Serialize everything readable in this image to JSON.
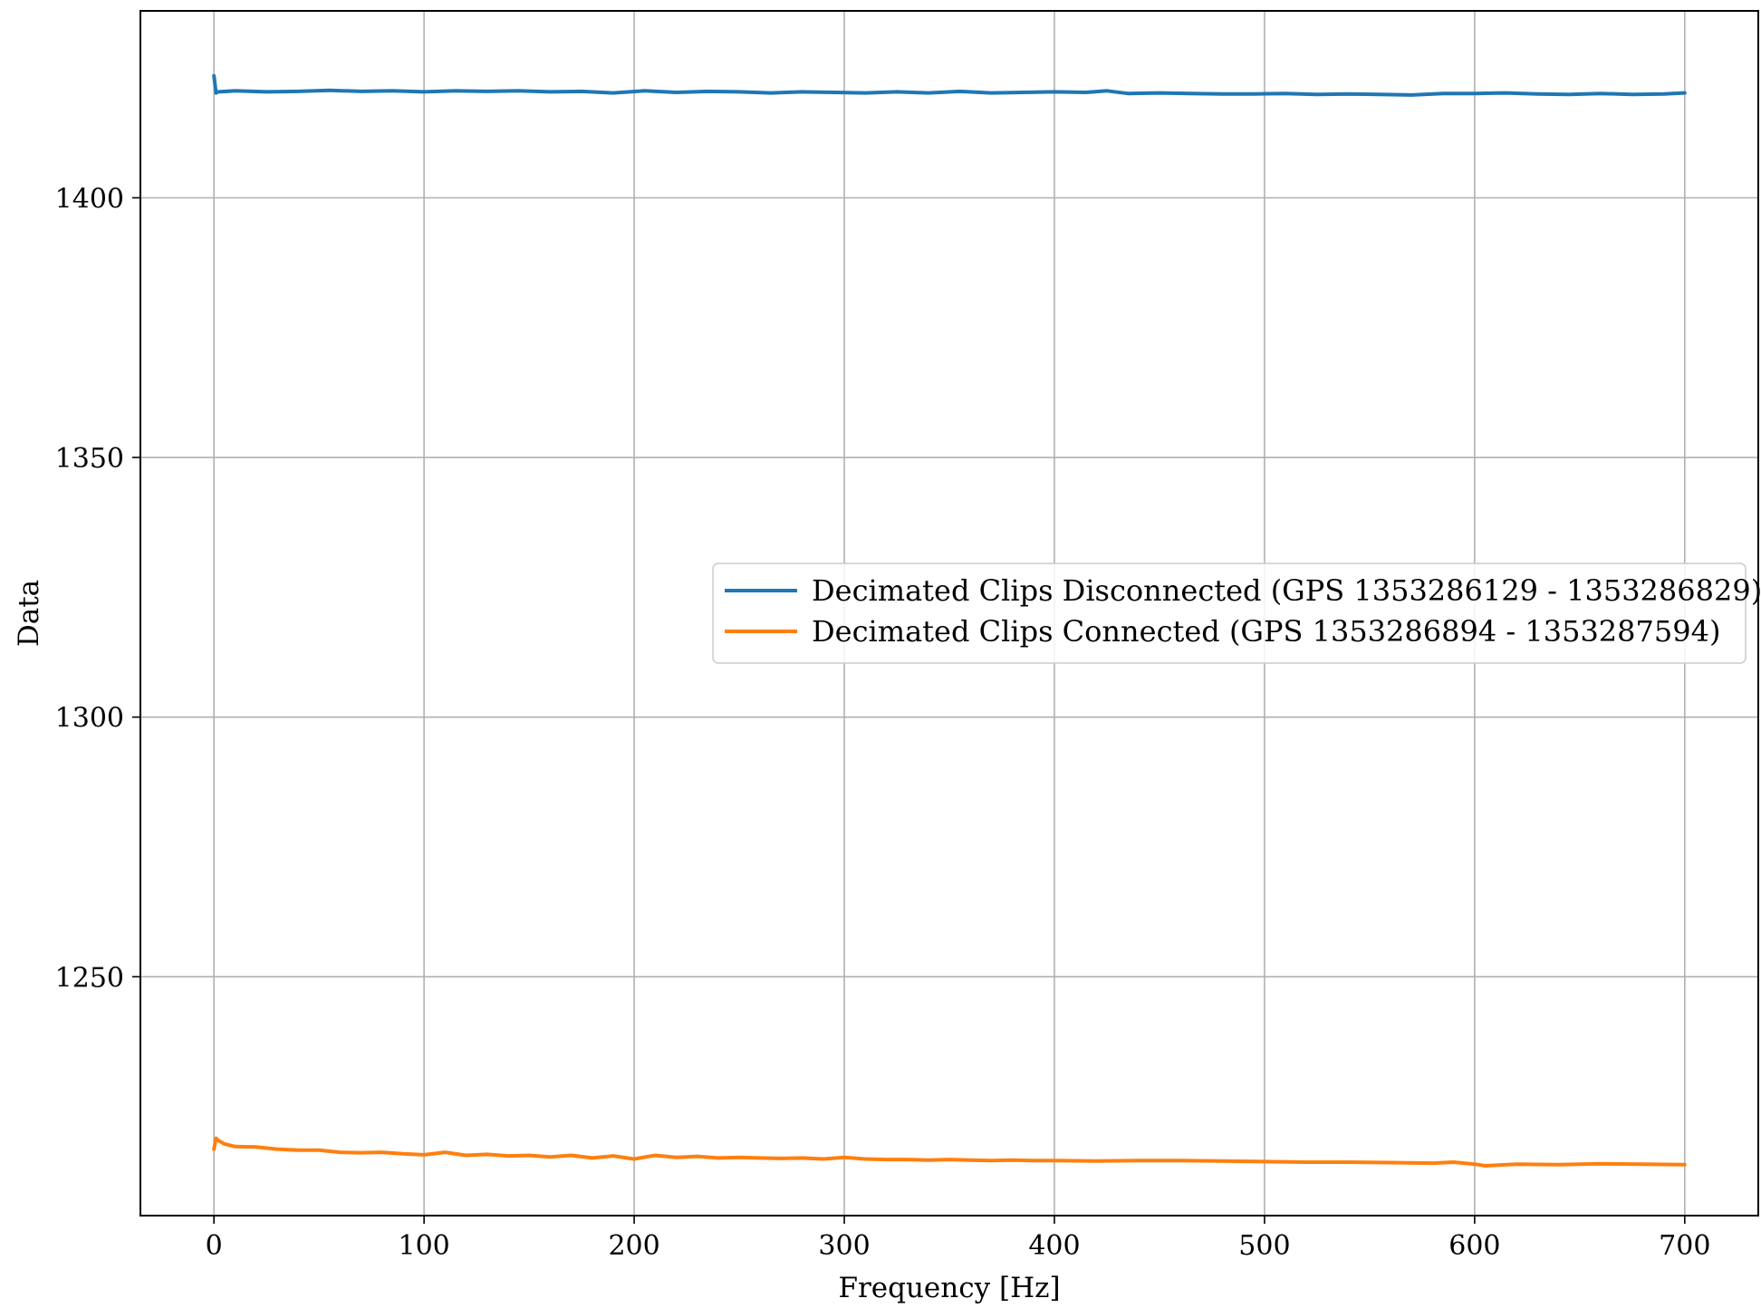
{
  "chart_data": {
    "type": "line",
    "title": "",
    "xlabel": "Frequency [Hz]",
    "ylabel": "Data",
    "xlim": [
      -35,
      735
    ],
    "ylim": [
      1204,
      1436
    ],
    "xticks": [
      0,
      100,
      200,
      300,
      400,
      500,
      600,
      700
    ],
    "yticks": [
      1250,
      1300,
      1350,
      1400
    ],
    "grid": true,
    "legend_position": "center-right",
    "colors": {
      "series_1": "#1f77b4",
      "series_2": "#ff7f0e",
      "grid": "#b0b0b0"
    },
    "series": [
      {
        "name": "Decimated Clips Disconnected (GPS 1353286129 - 1353286829)",
        "color": "#1f77b4",
        "x": [
          0,
          1,
          2,
          10,
          25,
          40,
          55,
          70,
          85,
          100,
          115,
          130,
          145,
          160,
          175,
          190,
          205,
          220,
          235,
          250,
          265,
          280,
          295,
          310,
          325,
          340,
          355,
          370,
          385,
          400,
          415,
          425,
          435,
          450,
          465,
          480,
          495,
          510,
          525,
          540,
          555,
          570,
          585,
          600,
          615,
          630,
          645,
          660,
          675,
          690,
          700
        ],
        "y": [
          1423.5,
          1420.2,
          1420.4,
          1420.6,
          1420.4,
          1420.5,
          1420.7,
          1420.5,
          1420.6,
          1420.4,
          1420.6,
          1420.5,
          1420.6,
          1420.4,
          1420.5,
          1420.2,
          1420.6,
          1420.3,
          1420.5,
          1420.4,
          1420.2,
          1420.4,
          1420.3,
          1420.2,
          1420.4,
          1420.2,
          1420.5,
          1420.2,
          1420.3,
          1420.4,
          1420.3,
          1420.6,
          1420.1,
          1420.2,
          1420.1,
          1420.0,
          1420.0,
          1420.1,
          1419.9,
          1420.0,
          1419.9,
          1419.8,
          1420.1,
          1420.1,
          1420.2,
          1420.0,
          1419.9,
          1420.1,
          1419.9,
          1420.0,
          1420.2
        ]
      },
      {
        "name": "Decimated Clips Connected (GPS 1353286894 - 1353287594)",
        "color": "#ff7f0e",
        "x": [
          0,
          1,
          2,
          5,
          10,
          20,
          30,
          40,
          50,
          60,
          70,
          80,
          90,
          100,
          110,
          120,
          130,
          140,
          150,
          160,
          170,
          180,
          190,
          200,
          210,
          220,
          230,
          240,
          250,
          260,
          270,
          280,
          290,
          300,
          310,
          320,
          330,
          340,
          350,
          360,
          370,
          380,
          390,
          400,
          420,
          440,
          460,
          480,
          500,
          520,
          540,
          560,
          580,
          590,
          600,
          605,
          620,
          640,
          660,
          680,
          700
        ],
        "y": [
          1216.8,
          1218.9,
          1218.5,
          1217.8,
          1217.3,
          1217.2,
          1216.8,
          1216.6,
          1216.6,
          1216.2,
          1216.1,
          1216.2,
          1215.9,
          1215.7,
          1216.2,
          1215.6,
          1215.8,
          1215.5,
          1215.6,
          1215.3,
          1215.6,
          1215.1,
          1215.5,
          1214.9,
          1215.6,
          1215.2,
          1215.4,
          1215.1,
          1215.2,
          1215.1,
          1215.0,
          1215.1,
          1214.9,
          1215.2,
          1214.9,
          1214.8,
          1214.8,
          1214.7,
          1214.8,
          1214.7,
          1214.6,
          1214.7,
          1214.6,
          1214.6,
          1214.5,
          1214.6,
          1214.6,
          1214.5,
          1214.4,
          1214.3,
          1214.3,
          1214.2,
          1214.1,
          1214.3,
          1213.9,
          1213.6,
          1213.9,
          1213.8,
          1214.0,
          1213.9,
          1213.8
        ]
      }
    ]
  }
}
